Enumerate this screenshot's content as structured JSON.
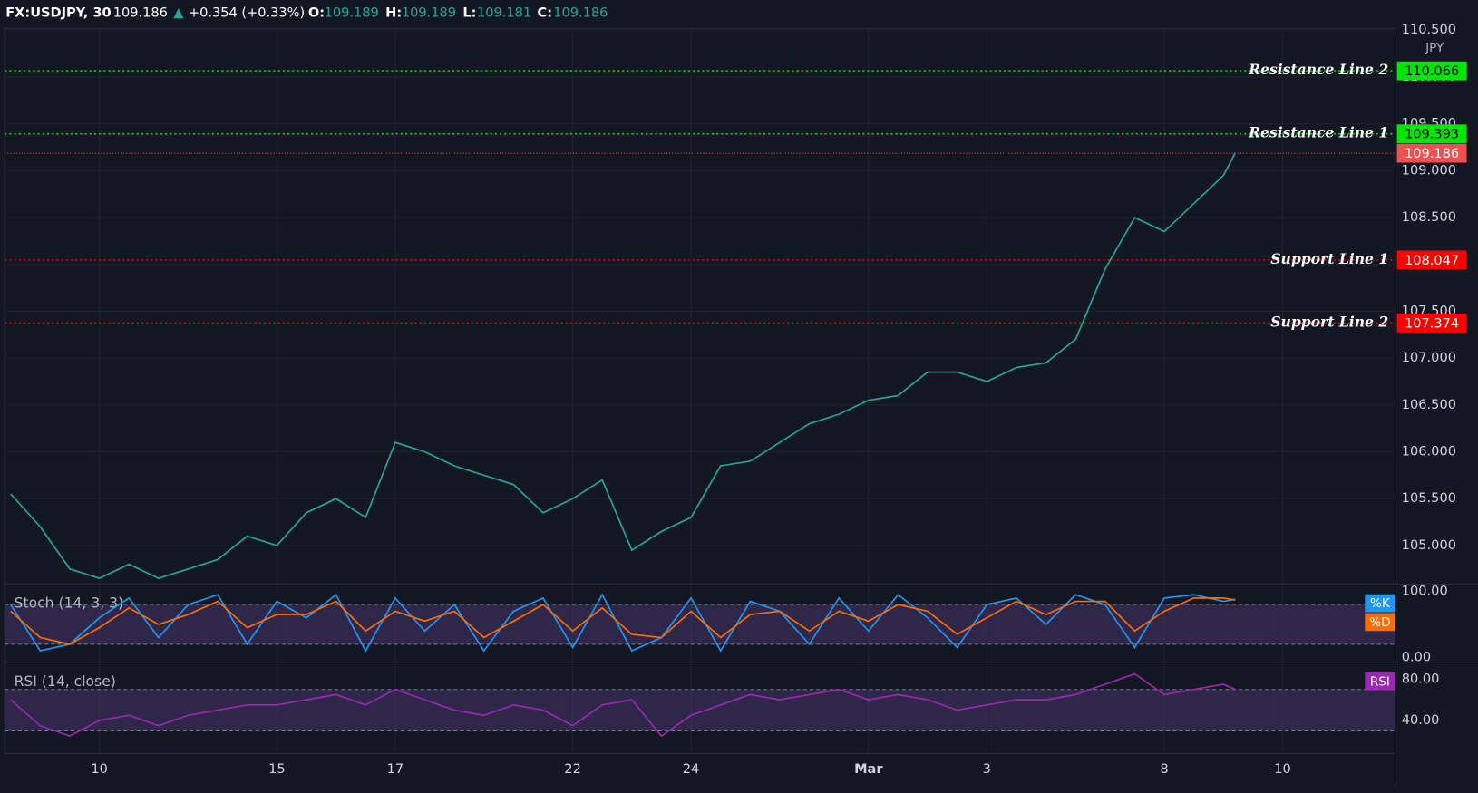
{
  "header": {
    "symbol": "FX:USDJPY, 30",
    "price": "109.186",
    "arrow": "▲",
    "change": "+0.354 (+0.33%)",
    "open_label": "O:",
    "open": "109.189",
    "high_label": "H:",
    "high": "109.189",
    "low_label": "L:",
    "low": "109.181",
    "close_label": "C:",
    "close": "109.186",
    "currency": "JPY"
  },
  "chart_data": [
    {
      "type": "line",
      "xlim": [
        -1.6,
        21.9
      ],
      "ylim": [
        104.59,
        110.49
      ],
      "xticks": [
        {
          "value": 0,
          "label": "10"
        },
        {
          "value": 3,
          "label": "15"
        },
        {
          "value": 5,
          "label": "17"
        },
        {
          "value": 8,
          "label": "22"
        },
        {
          "value": 10,
          "label": "24"
        },
        {
          "value": 13,
          "label": "Mar"
        },
        {
          "value": 15,
          "label": "3"
        },
        {
          "value": 18,
          "label": "8"
        },
        {
          "value": 20,
          "label": "10"
        }
      ],
      "yticks": [
        {
          "value": 105,
          "label": "105.000"
        },
        {
          "value": 105.5,
          "label": "105.500"
        },
        {
          "value": 106,
          "label": "106.000"
        },
        {
          "value": 106.5,
          "label": "106.500"
        },
        {
          "value": 107,
          "label": "107.000"
        },
        {
          "value": 107.5,
          "label": "107.500"
        },
        {
          "value": 108,
          "label": "108.000"
        },
        {
          "value": 108.5,
          "label": "108.500"
        },
        {
          "value": 109,
          "label": "109.000"
        },
        {
          "value": 109.5,
          "label": "109.500"
        },
        {
          "value": 110,
          "label": "110.000"
        },
        {
          "value": 110.5,
          "label": "110.500"
        }
      ],
      "grid": true,
      "x": [
        -1.5,
        -1,
        -0.5,
        0,
        0.5,
        1,
        1.5,
        2,
        2.5,
        3,
        3.5,
        4,
        4.5,
        5,
        5.5,
        6,
        6.5,
        7,
        7.5,
        8,
        8.5,
        9,
        9.5,
        10,
        10.5,
        11,
        11.5,
        12,
        12.5,
        13,
        13.5,
        14,
        14.5,
        15,
        15.5,
        16,
        16.5,
        17,
        17.5,
        18,
        18.5,
        19,
        19.2
      ],
      "series": [
        {
          "name": "USDJPY",
          "color": "#26a69a",
          "values": [
            105.55,
            105.2,
            104.75,
            104.65,
            104.8,
            104.65,
            104.75,
            104.85,
            105.1,
            105.0,
            105.35,
            105.5,
            105.3,
            106.1,
            106.0,
            105.85,
            105.75,
            105.65,
            105.35,
            105.5,
            105.7,
            104.95,
            105.15,
            105.3,
            105.85,
            105.9,
            106.1,
            106.3,
            106.4,
            106.55,
            106.6,
            106.85,
            106.85,
            106.75,
            106.9,
            106.95,
            107.2,
            107.95,
            108.5,
            108.35,
            108.65,
            108.95,
            109.19
          ]
        }
      ],
      "lines": [
        {
          "label": "Resistance Line 2",
          "value": 110.066,
          "color": "#00e600"
        },
        {
          "label": "Resistance Line 1",
          "value": 109.393,
          "color": "#00e600"
        },
        {
          "label": "Support Line 1",
          "value": 108.047,
          "color": "#ff0000"
        },
        {
          "label": "Support Line 2",
          "value": 107.374,
          "color": "#ff0000"
        }
      ],
      "last": {
        "value": 109.186,
        "color": "#f05050"
      }
    },
    {
      "type": "line",
      "title": "Stoch (14, 3, 3)",
      "xlim": [
        -1.6,
        21.9
      ],
      "ylim": [
        -7.1,
        111.4
      ],
      "yticks": [
        {
          "value": 0,
          "label": "0.00"
        },
        {
          "value": 100,
          "label": "100.00"
        }
      ],
      "bands": [
        20,
        80
      ],
      "band_color": "#7e57c2",
      "x": [
        -1.5,
        -1,
        -0.5,
        0,
        0.5,
        1,
        1.5,
        2,
        2.5,
        3,
        3.5,
        4,
        4.5,
        5,
        5.5,
        6,
        6.5,
        7,
        7.5,
        8,
        8.5,
        9,
        9.5,
        10,
        10.5,
        11,
        11.5,
        12,
        12.5,
        13,
        13.5,
        14,
        14.5,
        15,
        15.5,
        16,
        16.5,
        17,
        17.5,
        18,
        18.5,
        19,
        19.2
      ],
      "series": [
        {
          "name": "%K",
          "color": "#2196f3",
          "values": [
            80,
            10,
            20,
            60,
            90,
            30,
            80,
            95,
            20,
            85,
            60,
            95,
            10,
            90,
            40,
            80,
            10,
            70,
            90,
            15,
            95,
            10,
            30,
            90,
            10,
            85,
            70,
            20,
            90,
            40,
            95,
            60,
            15,
            80,
            90,
            50,
            95,
            80,
            15,
            90,
            95,
            85,
            88
          ]
        },
        {
          "name": "%D",
          "color": "#ff6d00",
          "values": [
            70,
            30,
            20,
            45,
            75,
            50,
            65,
            85,
            45,
            65,
            65,
            85,
            40,
            70,
            55,
            70,
            30,
            55,
            80,
            40,
            75,
            35,
            30,
            70,
            30,
            65,
            70,
            40,
            70,
            55,
            80,
            70,
            35,
            60,
            85,
            65,
            85,
            85,
            40,
            70,
            90,
            90,
            87
          ]
        }
      ]
    },
    {
      "type": "line",
      "title": "RSI (14, close)",
      "xlim": [
        -1.6,
        21.9
      ],
      "ylim": [
        8.2,
        96.4
      ],
      "yticks": [
        {
          "value": 40,
          "label": "40.00"
        },
        {
          "value": 80,
          "label": "80.00"
        }
      ],
      "bands": [
        30,
        70
      ],
      "band_color": "#7e57c2",
      "x": [
        -1.5,
        -1,
        -0.5,
        0,
        0.5,
        1,
        1.5,
        2,
        2.5,
        3,
        3.5,
        4,
        4.5,
        5,
        5.5,
        6,
        6.5,
        7,
        7.5,
        8,
        8.5,
        9,
        9.5,
        10,
        10.5,
        11,
        11.5,
        12,
        12.5,
        13,
        13.5,
        14,
        14.5,
        15,
        15.5,
        16,
        16.5,
        17,
        17.5,
        18,
        18.5,
        19,
        19.2
      ],
      "series": [
        {
          "name": "RSI",
          "color": "#9c27b0",
          "values": [
            60,
            35,
            25,
            40,
            45,
            35,
            45,
            50,
            55,
            55,
            60,
            65,
            55,
            70,
            60,
            50,
            45,
            55,
            50,
            35,
            55,
            60,
            25,
            45,
            55,
            65,
            60,
            65,
            70,
            60,
            65,
            60,
            50,
            55,
            60,
            60,
            65,
            75,
            85,
            65,
            70,
            75,
            70
          ]
        }
      ]
    }
  ]
}
